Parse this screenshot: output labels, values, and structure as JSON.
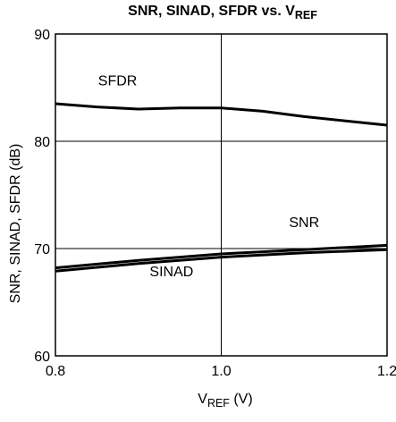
{
  "chart_data": {
    "type": "line",
    "title": {
      "main": "SNR, SINAD, SFDR vs. V",
      "sub": "REF"
    },
    "xlabel": {
      "main": "V",
      "sub": "REF",
      "rest": " (V)"
    },
    "ylabel": "SNR, SINAD, SFDR (dB)",
    "xlim": [
      0.8,
      1.2
    ],
    "ylim": [
      60,
      90
    ],
    "xticks": [
      "0.8",
      "1.0",
      "1.2"
    ],
    "yticks": [
      "60",
      "70",
      "80",
      "90"
    ],
    "grid": true,
    "series": [
      {
        "name": "SFDR",
        "x": [
          0.8,
          0.85,
          0.9,
          0.95,
          1.0,
          1.05,
          1.1,
          1.15,
          1.2
        ],
        "y": [
          83.5,
          83.2,
          83.0,
          83.1,
          83.1,
          82.8,
          82.3,
          81.9,
          81.5
        ]
      },
      {
        "name": "SNR",
        "x": [
          0.8,
          0.9,
          1.0,
          1.1,
          1.2
        ],
        "y": [
          68.2,
          68.9,
          69.5,
          69.9,
          70.3
        ]
      },
      {
        "name": "SINAD",
        "x": [
          0.8,
          0.9,
          1.0,
          1.1,
          1.2
        ],
        "y": [
          67.9,
          68.6,
          69.2,
          69.6,
          69.9
        ]
      }
    ]
  }
}
